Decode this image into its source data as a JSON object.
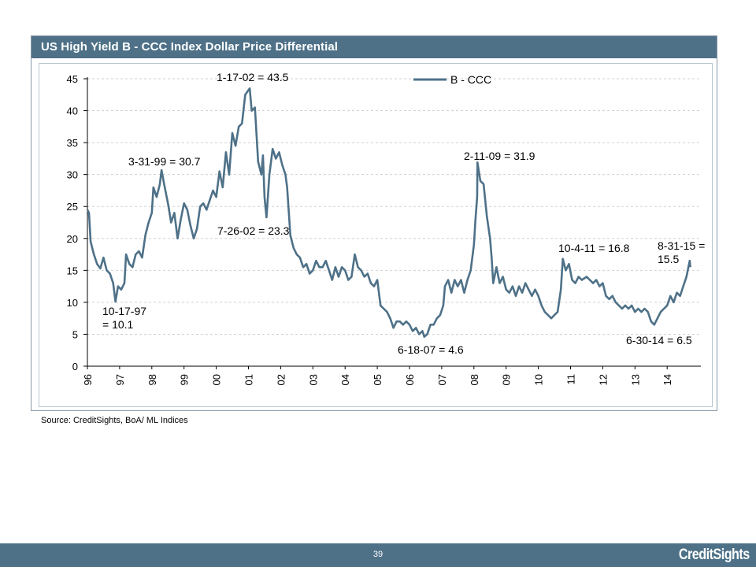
{
  "chart_data": {
    "type": "line",
    "title": "US High Yield B  - CCC Index Dollar Price Differential",
    "xlabel": "",
    "ylabel": "",
    "ylim": [
      0,
      45
    ],
    "yticks": [
      "0",
      "5",
      "10",
      "15",
      "20",
      "25",
      "30",
      "35",
      "40",
      "45"
    ],
    "xticks": [
      "96",
      "97",
      "98",
      "99",
      "00",
      "01",
      "02",
      "03",
      "04",
      "05",
      "06",
      "07",
      "08",
      "09",
      "10",
      "11",
      "12",
      "13",
      "14"
    ],
    "grid": "horizontal dashed",
    "legend": "top-center",
    "series": [
      {
        "name": "B - CCC",
        "color": "#4e7188",
        "points": [
          [
            1996.0,
            24.5
          ],
          [
            1996.05,
            24.0
          ],
          [
            1996.1,
            19.5
          ],
          [
            1996.2,
            17.5
          ],
          [
            1996.3,
            16.0
          ],
          [
            1996.4,
            15.3
          ],
          [
            1996.5,
            17.0
          ],
          [
            1996.6,
            15.0
          ],
          [
            1996.7,
            14.5
          ],
          [
            1996.8,
            13.0
          ],
          [
            1996.87,
            10.1
          ],
          [
            1996.95,
            12.5
          ],
          [
            1997.05,
            12.0
          ],
          [
            1997.15,
            13.0
          ],
          [
            1997.2,
            17.5
          ],
          [
            1997.3,
            16.0
          ],
          [
            1997.4,
            15.5
          ],
          [
            1997.5,
            17.5
          ],
          [
            1997.6,
            18.0
          ],
          [
            1997.7,
            17.0
          ],
          [
            1997.8,
            20.5
          ],
          [
            1997.9,
            22.5
          ],
          [
            1998.0,
            24.0
          ],
          [
            1998.05,
            28.0
          ],
          [
            1998.15,
            26.5
          ],
          [
            1998.25,
            28.5
          ],
          [
            1998.3,
            30.7
          ],
          [
            1998.4,
            28.0
          ],
          [
            1998.5,
            25.5
          ],
          [
            1998.6,
            22.5
          ],
          [
            1998.7,
            24.0
          ],
          [
            1998.8,
            20.0
          ],
          [
            1998.9,
            23.0
          ],
          [
            1999.0,
            25.5
          ],
          [
            1999.1,
            24.5
          ],
          [
            1999.2,
            22.0
          ],
          [
            1999.3,
            20.0
          ],
          [
            1999.4,
            21.5
          ],
          [
            1999.5,
            25.0
          ],
          [
            1999.6,
            25.5
          ],
          [
            1999.7,
            24.5
          ],
          [
            1999.8,
            26.0
          ],
          [
            1999.9,
            27.5
          ],
          [
            2000.0,
            26.5
          ],
          [
            2000.1,
            30.5
          ],
          [
            2000.2,
            28.0
          ],
          [
            2000.3,
            33.5
          ],
          [
            2000.4,
            30.0
          ],
          [
            2000.5,
            36.5
          ],
          [
            2000.6,
            34.5
          ],
          [
            2000.7,
            37.5
          ],
          [
            2000.8,
            38.0
          ],
          [
            2000.9,
            42.5
          ],
          [
            2001.04,
            43.5
          ],
          [
            2001.1,
            40.0
          ],
          [
            2001.2,
            40.5
          ],
          [
            2001.3,
            32.0
          ],
          [
            2001.4,
            30.0
          ],
          [
            2001.45,
            33.0
          ],
          [
            2001.5,
            26.5
          ],
          [
            2001.56,
            23.3
          ],
          [
            2001.65,
            30.0
          ],
          [
            2001.75,
            34.0
          ],
          [
            2001.85,
            32.5
          ],
          [
            2001.95,
            33.5
          ],
          [
            2002.05,
            31.5
          ],
          [
            2002.15,
            30.0
          ],
          [
            2002.2,
            28.0
          ],
          [
            2002.3,
            20.5
          ],
          [
            2002.4,
            18.5
          ],
          [
            2002.5,
            17.5
          ],
          [
            2002.6,
            17.0
          ],
          [
            2002.7,
            15.5
          ],
          [
            2002.8,
            16.0
          ],
          [
            2002.9,
            14.5
          ],
          [
            2003.0,
            15.0
          ],
          [
            2003.1,
            16.5
          ],
          [
            2003.2,
            15.5
          ],
          [
            2003.3,
            15.5
          ],
          [
            2003.4,
            16.5
          ],
          [
            2003.5,
            15.0
          ],
          [
            2003.6,
            13.5
          ],
          [
            2003.7,
            15.5
          ],
          [
            2003.8,
            14.0
          ],
          [
            2003.9,
            15.5
          ],
          [
            2004.0,
            15.0
          ],
          [
            2004.1,
            13.5
          ],
          [
            2004.2,
            14.0
          ],
          [
            2004.3,
            17.5
          ],
          [
            2004.4,
            15.5
          ],
          [
            2004.5,
            15.0
          ],
          [
            2004.6,
            14.0
          ],
          [
            2004.7,
            14.5
          ],
          [
            2004.8,
            13.0
          ],
          [
            2004.9,
            12.5
          ],
          [
            2005.0,
            13.5
          ],
          [
            2005.1,
            9.5
          ],
          [
            2005.2,
            9.0
          ],
          [
            2005.3,
            8.5
          ],
          [
            2005.4,
            7.5
          ],
          [
            2005.5,
            6.0
          ],
          [
            2005.6,
            7.0
          ],
          [
            2005.7,
            7.0
          ],
          [
            2005.8,
            6.5
          ],
          [
            2005.9,
            7.0
          ],
          [
            2006.0,
            6.5
          ],
          [
            2006.1,
            5.5
          ],
          [
            2006.2,
            6.0
          ],
          [
            2006.3,
            5.0
          ],
          [
            2006.4,
            5.5
          ],
          [
            2006.46,
            4.6
          ],
          [
            2006.55,
            5.0
          ],
          [
            2006.65,
            6.5
          ],
          [
            2006.75,
            6.5
          ],
          [
            2006.85,
            7.5
          ],
          [
            2006.95,
            8.0
          ],
          [
            2007.05,
            9.5
          ],
          [
            2007.1,
            12.5
          ],
          [
            2007.2,
            13.5
          ],
          [
            2007.3,
            11.5
          ],
          [
            2007.4,
            13.5
          ],
          [
            2007.5,
            12.5
          ],
          [
            2007.6,
            13.5
          ],
          [
            2007.7,
            11.5
          ],
          [
            2007.8,
            13.5
          ],
          [
            2007.9,
            15.0
          ],
          [
            2008.0,
            19.0
          ],
          [
            2008.05,
            23.0
          ],
          [
            2008.1,
            26.5
          ],
          [
            2008.11,
            31.9
          ],
          [
            2008.2,
            29.0
          ],
          [
            2008.3,
            28.5
          ],
          [
            2008.4,
            23.5
          ],
          [
            2008.5,
            20.0
          ],
          [
            2008.55,
            17.0
          ],
          [
            2008.6,
            13.0
          ],
          [
            2008.7,
            15.5
          ],
          [
            2008.8,
            13.0
          ],
          [
            2008.9,
            14.0
          ],
          [
            2009.0,
            12.0
          ],
          [
            2009.1,
            11.5
          ],
          [
            2009.2,
            12.5
          ],
          [
            2009.3,
            11.0
          ],
          [
            2009.4,
            12.5
          ],
          [
            2009.5,
            11.5
          ],
          [
            2009.6,
            13.0
          ],
          [
            2009.7,
            12.0
          ],
          [
            2009.8,
            11.0
          ],
          [
            2009.9,
            12.0
          ],
          [
            2010.0,
            11.0
          ],
          [
            2010.1,
            9.5
          ],
          [
            2010.2,
            8.5
          ],
          [
            2010.3,
            8.0
          ],
          [
            2010.4,
            7.5
          ],
          [
            2010.5,
            8.0
          ],
          [
            2010.6,
            8.5
          ],
          [
            2010.7,
            12.0
          ],
          [
            2010.76,
            16.8
          ],
          [
            2010.85,
            15.0
          ],
          [
            2010.95,
            16.0
          ],
          [
            2011.05,
            13.5
          ],
          [
            2011.15,
            13.0
          ],
          [
            2011.25,
            14.0
          ],
          [
            2011.35,
            13.5
          ],
          [
            2011.5,
            14.0
          ],
          [
            2011.6,
            13.5
          ],
          [
            2011.7,
            13.0
          ],
          [
            2011.8,
            13.5
          ],
          [
            2011.9,
            12.5
          ],
          [
            2012.0,
            13.0
          ],
          [
            2012.1,
            11.0
          ],
          [
            2012.2,
            10.5
          ],
          [
            2012.3,
            11.0
          ],
          [
            2012.4,
            10.0
          ],
          [
            2012.5,
            9.5
          ],
          [
            2012.6,
            9.0
          ],
          [
            2012.7,
            9.5
          ],
          [
            2012.8,
            9.0
          ],
          [
            2012.9,
            9.5
          ],
          [
            2013.0,
            8.5
          ],
          [
            2013.1,
            9.0
          ],
          [
            2013.2,
            8.5
          ],
          [
            2013.3,
            9.0
          ],
          [
            2013.4,
            8.5
          ],
          [
            2013.5,
            7.0
          ],
          [
            2013.6,
            6.5
          ],
          [
            2013.7,
            7.5
          ],
          [
            2013.8,
            8.5
          ],
          [
            2013.9,
            9.0
          ],
          [
            2014.0,
            9.5
          ],
          [
            2014.1,
            11.0
          ],
          [
            2014.2,
            10.0
          ],
          [
            2014.3,
            11.5
          ],
          [
            2014.4,
            11.0
          ],
          [
            2014.5,
            12.5
          ],
          [
            2014.6,
            14.0
          ],
          [
            2014.7,
            16.5
          ],
          [
            2014.72,
            15.5
          ]
        ]
      }
    ],
    "annotations": [
      {
        "lines": [
          "1-17-02 = 43.5"
        ]
      },
      {
        "lines": [
          "3-31-99 = 30.7"
        ]
      },
      {
        "lines": [
          "7-26-02 = 23.3"
        ]
      },
      {
        "lines": [
          "2-11-09 = 31.9"
        ]
      },
      {
        "lines": [
          "10-17-97",
          "= 10.1"
        ]
      },
      {
        "lines": [
          "6-18-07 = 4.6"
        ]
      },
      {
        "lines": [
          "10-4-11 = 16.8"
        ]
      },
      {
        "lines": [
          "8-31-15 =",
          "15.5"
        ]
      },
      {
        "lines": [
          "6-30-14 = 6.5"
        ]
      }
    ]
  },
  "source_text": "Source: CreditSights, BoA/ ML Indices",
  "footer": {
    "page_number": "39",
    "logo_text": "CreditSights",
    "background": "#4e7188"
  }
}
